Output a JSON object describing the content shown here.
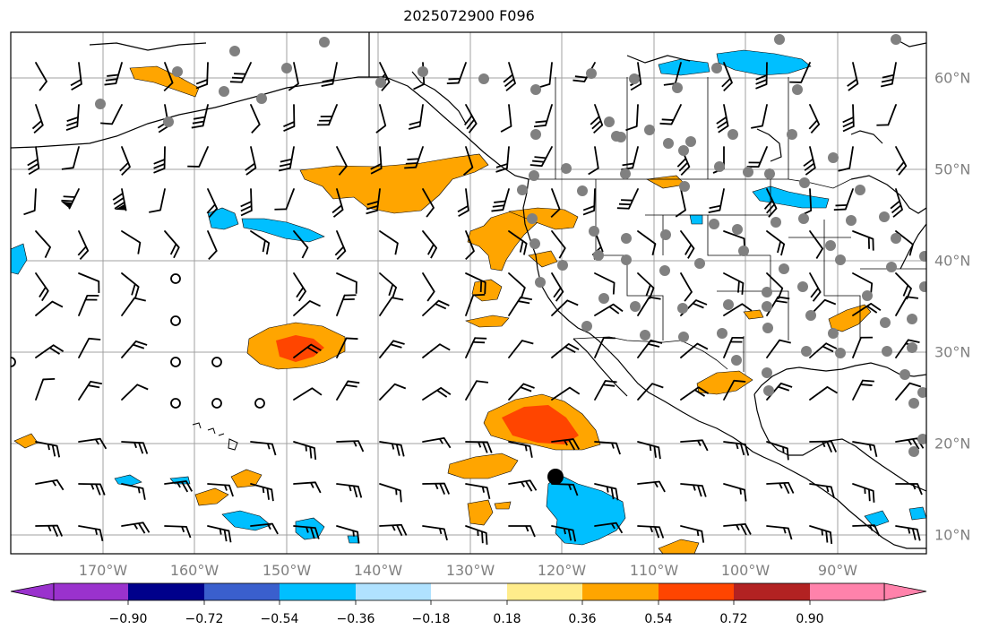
{
  "title": "2025072900 F096",
  "map": {
    "lon_labels": [
      "170°W",
      "160°W",
      "150°W",
      "140°W",
      "130°W",
      "120°W",
      "110°W",
      "100°W",
      "90°W"
    ],
    "lat_labels": [
      "60°N",
      "50°N",
      "40°N",
      "30°N",
      "20°N",
      "10°N"
    ],
    "colors": {
      "land_outline": "#000000",
      "grid": "#a0a0a0",
      "station": "#808080"
    }
  },
  "colorbar": {
    "ticks": [
      "−0.90",
      "−0.72",
      "−0.54",
      "−0.36",
      "−0.18",
      "0.18",
      "0.36",
      "0.54",
      "0.72",
      "0.90"
    ],
    "colors": [
      "#9a32cd",
      "#00008b",
      "#3a5fcd",
      "#00bfff",
      "#b0e2ff",
      "#ffffff",
      "#ffec8b",
      "#ffa500",
      "#ff4500",
      "#b22222",
      "#ff82ab"
    ]
  }
}
